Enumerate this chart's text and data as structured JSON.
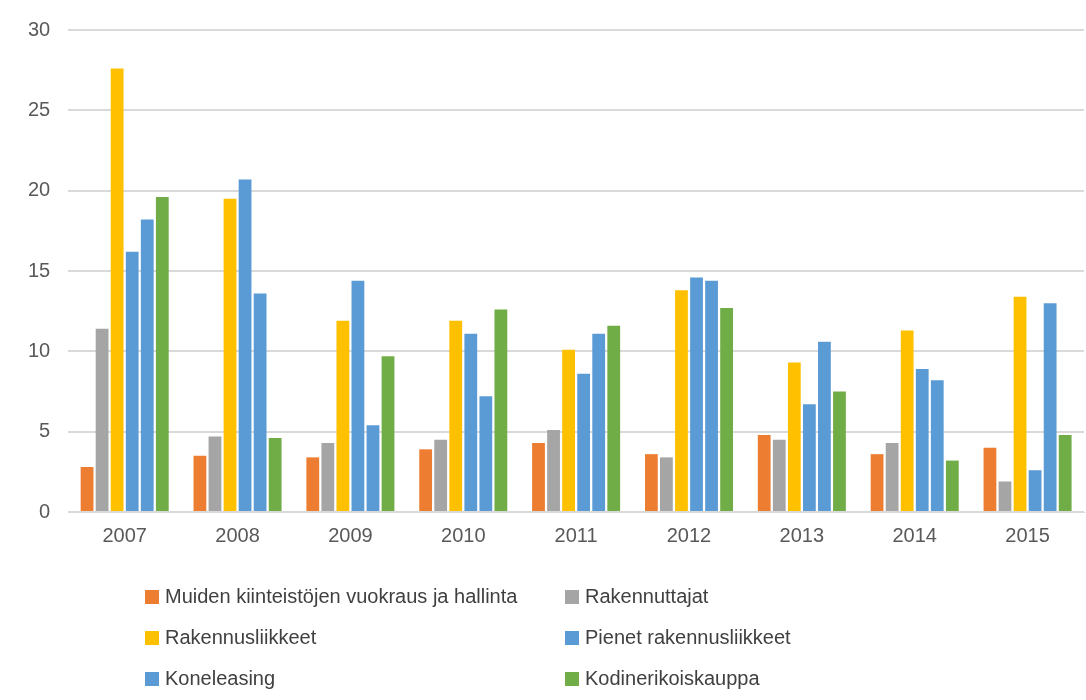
{
  "chart_data": {
    "type": "bar",
    "categories": [
      "2007",
      "2008",
      "2009",
      "2010",
      "2011",
      "2012",
      "2013",
      "2014",
      "2015"
    ],
    "series": [
      {
        "name": "Muiden kiinteistöjen vuokraus ja hallinta",
        "color": "#ed7d31",
        "values": [
          2.8,
          3.5,
          3.4,
          3.9,
          4.3,
          3.6,
          4.8,
          3.6,
          4.0
        ]
      },
      {
        "name": "Rakennuttajat",
        "color": "#a5a5a5",
        "values": [
          11.4,
          4.7,
          4.3,
          4.5,
          5.1,
          3.4,
          4.5,
          4.3,
          1.9
        ]
      },
      {
        "name": "Rakennusliikkeet",
        "color": "#ffc000",
        "values": [
          27.6,
          19.5,
          11.9,
          11.9,
          10.1,
          13.8,
          9.3,
          11.3,
          13.4
        ]
      },
      {
        "name": "Pienet rakennusliikkeet",
        "color": "#5b9bd5",
        "values": [
          16.2,
          20.7,
          14.4,
          11.1,
          8.6,
          14.6,
          6.7,
          8.9,
          2.6
        ]
      },
      {
        "name": "Koneleasing",
        "color": "#5b9bd5",
        "values": [
          18.2,
          13.6,
          5.4,
          7.2,
          11.1,
          14.4,
          10.6,
          8.2,
          13.0
        ]
      },
      {
        "name": "Kodinerikoiskauppa",
        "color": "#70ad47",
        "values": [
          19.6,
          4.6,
          9.7,
          12.6,
          11.6,
          12.7,
          7.5,
          3.2,
          4.8
        ]
      }
    ],
    "ylim": [
      0,
      30
    ],
    "yticks": [
      0,
      5,
      10,
      15,
      20,
      25,
      30
    ],
    "grid": "y",
    "legend": "bottom"
  }
}
